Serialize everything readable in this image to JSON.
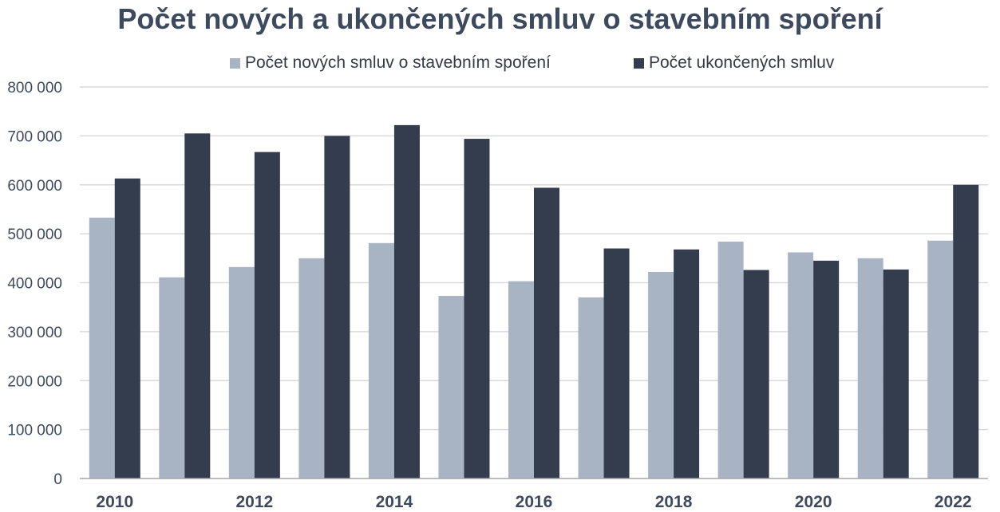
{
  "chart_data": {
    "type": "bar",
    "title": "Počet nových a ukončených smluv o stavebním spoření",
    "xlabel": "",
    "ylabel": "",
    "categories": [
      "2010",
      "2011",
      "2012",
      "2013",
      "2014",
      "2015",
      "2016",
      "2017",
      "2018",
      "2019",
      "2020",
      "2021",
      "2022"
    ],
    "x_tick_labels": [
      "2010",
      "",
      "2012",
      "",
      "2014",
      "",
      "2016",
      "",
      "2018",
      "",
      "2020",
      "",
      "2022"
    ],
    "y_tick_labels": [
      "0",
      "100 000",
      "200 000",
      "300 000",
      "400 000",
      "500 000",
      "600 000",
      "700 000",
      "800 000"
    ],
    "ylim": [
      0,
      800000
    ],
    "y_tick_step": 100000,
    "grid": true,
    "legend_position": "top-center",
    "series": [
      {
        "name": "Počet nových smluv o stavebním spoření",
        "color": "#a8b4c4",
        "values": [
          533000,
          411000,
          432000,
          450000,
          481000,
          373000,
          403000,
          370000,
          422000,
          484000,
          462000,
          450000,
          486000
        ]
      },
      {
        "name": "Počet ukončených smluv",
        "color": "#333d4e",
        "values": [
          613000,
          705000,
          667000,
          700000,
          722000,
          694000,
          594000,
          470000,
          468000,
          426000,
          445000,
          427000,
          600000
        ]
      }
    ]
  }
}
